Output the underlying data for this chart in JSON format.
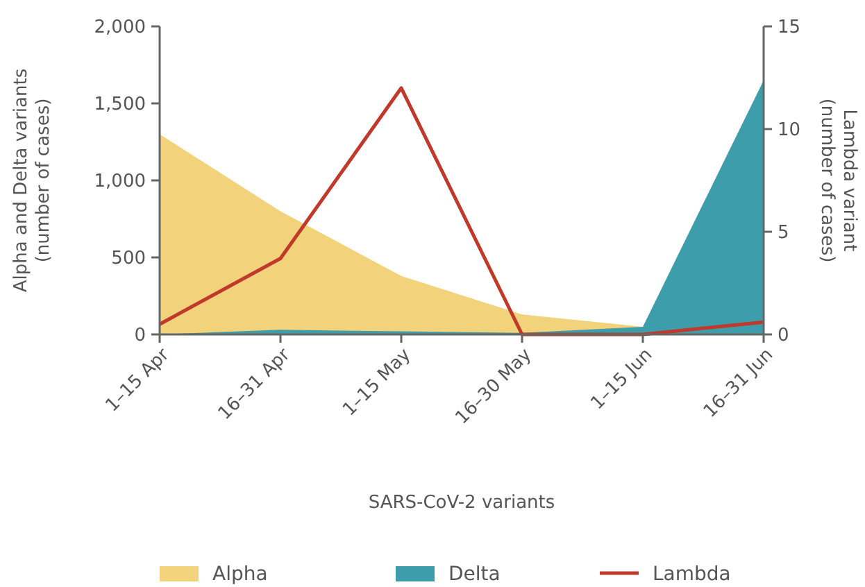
{
  "chart_data": {
    "type": "area",
    "xlabel": "SARS-CoV-2 variants",
    "ylabel": "Alpha and Delta variants\n(number of cases)",
    "y2label": "Lambda variant\n(number of cases)",
    "categories": [
      "1–15 Apr",
      "16–31 Apr",
      "1–15 May",
      "16–30 May",
      "1–15 Jun",
      "16–31 Jun"
    ],
    "series": [
      {
        "name": "Alpha",
        "color": "#f2d27b",
        "values": [
          1300,
          800,
          380,
          130,
          50,
          0
        ]
      },
      {
        "name": "Delta",
        "color": "#3d9dab",
        "values": [
          0,
          30,
          20,
          10,
          50,
          1650
        ]
      },
      {
        "name": "Lambda",
        "type": "line",
        "axis": "y2",
        "color": "#c0392b",
        "values": [
          0.5,
          3.7,
          12,
          0,
          0,
          0.6
        ]
      }
    ],
    "ylim": [
      0,
      2000
    ],
    "yticks": [
      {
        "value": 0,
        "label": "0"
      },
      {
        "value": 500,
        "label": "500"
      },
      {
        "value": 1000,
        "label": "1,000"
      },
      {
        "value": 1500,
        "label": "1,500"
      },
      {
        "value": 2000,
        "label": "2,000"
      }
    ],
    "y2lim": [
      0,
      15
    ],
    "y2ticks": [
      0,
      5,
      10,
      15
    ],
    "grid": false,
    "legend": "bottom"
  }
}
